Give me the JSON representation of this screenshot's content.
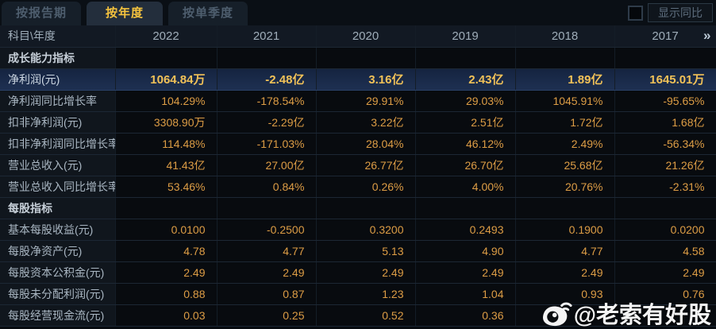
{
  "tabs": [
    {
      "name": "by-report-period",
      "label": "按报告期",
      "active": false
    },
    {
      "name": "by-year",
      "label": "按年度",
      "active": true
    },
    {
      "name": "by-single-quarter",
      "label": "按单季度",
      "active": false
    }
  ],
  "controls": {
    "show_yoy_label": "显示同比",
    "checkbox_checked": false
  },
  "table": {
    "corner_label": "科目\\年度",
    "year_columns": [
      "2022",
      "2021",
      "2020",
      "2019",
      "2018",
      "2017"
    ],
    "more_columns_glyph": "»",
    "rows": [
      {
        "label": "成长能力指标",
        "type": "section",
        "values": [
          "",
          "",
          "",
          "",
          "",
          ""
        ]
      },
      {
        "label": "净利润(元)",
        "type": "highlight",
        "values": [
          "1064.84万",
          "-2.48亿",
          "3.16亿",
          "2.43亿",
          "1.89亿",
          "1645.01万"
        ]
      },
      {
        "label": "净利润同比增长率",
        "type": "data",
        "values": [
          "104.29%",
          "-178.54%",
          "29.91%",
          "29.03%",
          "1045.91%",
          "-95.65%"
        ]
      },
      {
        "label": "扣非净利润(元)",
        "type": "data",
        "values": [
          "3308.90万",
          "-2.29亿",
          "3.22亿",
          "2.51亿",
          "1.72亿",
          "1.68亿"
        ]
      },
      {
        "label": "扣非净利润同比增长率",
        "type": "data",
        "values": [
          "114.48%",
          "-171.03%",
          "28.04%",
          "46.12%",
          "2.49%",
          "-56.34%"
        ]
      },
      {
        "label": "营业总收入(元)",
        "type": "data",
        "values": [
          "41.43亿",
          "27.00亿",
          "26.77亿",
          "26.70亿",
          "25.68亿",
          "21.26亿"
        ]
      },
      {
        "label": "营业总收入同比增长率",
        "type": "data",
        "values": [
          "53.46%",
          "0.84%",
          "0.26%",
          "4.00%",
          "20.76%",
          "-2.31%"
        ]
      },
      {
        "label": "每股指标",
        "type": "section",
        "values": [
          "",
          "",
          "",
          "",
          "",
          ""
        ]
      },
      {
        "label": "基本每股收益(元)",
        "type": "data",
        "values": [
          "0.0100",
          "-0.2500",
          "0.3200",
          "0.2493",
          "0.1900",
          "0.0200"
        ]
      },
      {
        "label": "每股净资产(元)",
        "type": "data",
        "values": [
          "4.78",
          "4.77",
          "5.13",
          "4.90",
          "4.77",
          "4.58"
        ]
      },
      {
        "label": "每股资本公积金(元)",
        "type": "data",
        "values": [
          "2.49",
          "2.49",
          "2.49",
          "2.49",
          "2.49",
          "2.49"
        ]
      },
      {
        "label": "每股未分配利润(元)",
        "type": "data",
        "values": [
          "0.88",
          "0.87",
          "1.23",
          "1.04",
          "0.93",
          "0.76"
        ]
      },
      {
        "label": "每股经营现金流(元)",
        "type": "data",
        "values": [
          "0.03",
          "0.25",
          "0.52",
          "0.36",
          "",
          ""
        ]
      }
    ]
  },
  "watermark": {
    "text": "@老索有好股",
    "icon": "weibo-icon"
  },
  "colors": {
    "accent_gold": "#f5c33e",
    "value_orange": "#dd9d45",
    "highlight_value_gold": "#f2c258",
    "highlight_row_bg": "#1a2b4d",
    "page_bg": "#070b10"
  }
}
